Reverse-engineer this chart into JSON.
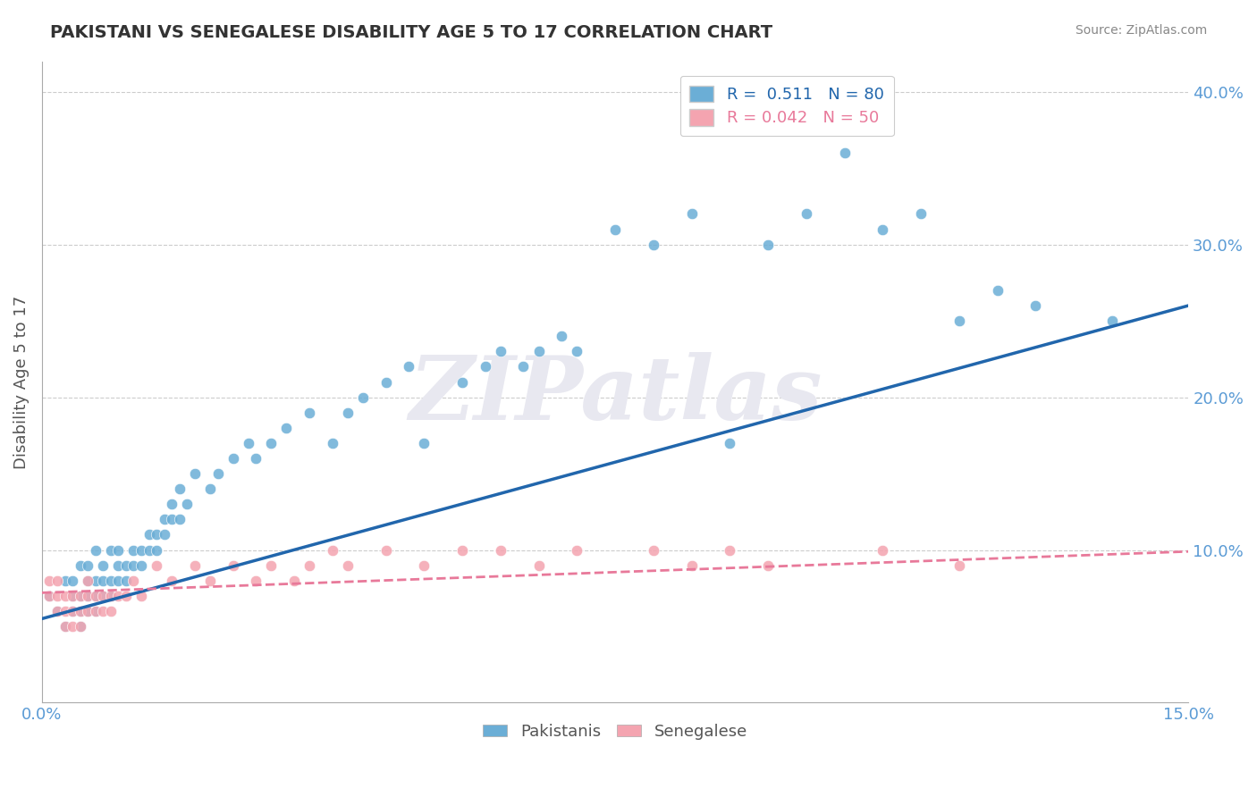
{
  "title": "PAKISTANI VS SENEGALESE DISABILITY AGE 5 TO 17 CORRELATION CHART",
  "source": "Source: ZipAtlas.com",
  "xlabel_bottom": [
    "0.0%",
    "15.0%"
  ],
  "ylabel": "Disability Age 5 to 17",
  "xlim": [
    0.0,
    0.15
  ],
  "ylim": [
    0.0,
    0.42
  ],
  "yticks": [
    0.0,
    0.1,
    0.2,
    0.3,
    0.4
  ],
  "ytick_labels": [
    "",
    "10.0%",
    "20.0%",
    "30.0%",
    "40.0%"
  ],
  "watermark": "ZIPatlas",
  "legend_r1": "R =  0.511",
  "legend_n1": "N = 80",
  "legend_r2": "R = 0.042",
  "legend_n2": "N = 50",
  "blue_color": "#6baed6",
  "pink_color": "#f4a4b0",
  "blue_line_color": "#2166ac",
  "pink_line_color": "#e8799a",
  "title_color": "#333333",
  "axis_label_color": "#5b9bd5",
  "grid_color": "#cccccc",
  "pakistani_x": [
    0.001,
    0.002,
    0.003,
    0.003,
    0.004,
    0.004,
    0.004,
    0.005,
    0.005,
    0.005,
    0.005,
    0.006,
    0.006,
    0.006,
    0.006,
    0.007,
    0.007,
    0.007,
    0.007,
    0.008,
    0.008,
    0.008,
    0.009,
    0.009,
    0.009,
    0.01,
    0.01,
    0.01,
    0.011,
    0.011,
    0.012,
    0.012,
    0.013,
    0.013,
    0.014,
    0.014,
    0.015,
    0.015,
    0.016,
    0.016,
    0.017,
    0.017,
    0.018,
    0.018,
    0.019,
    0.02,
    0.022,
    0.023,
    0.025,
    0.027,
    0.028,
    0.03,
    0.032,
    0.035,
    0.038,
    0.04,
    0.042,
    0.045,
    0.048,
    0.05,
    0.055,
    0.058,
    0.06,
    0.063,
    0.065,
    0.068,
    0.07,
    0.075,
    0.08,
    0.085,
    0.09,
    0.095,
    0.1,
    0.105,
    0.11,
    0.115,
    0.12,
    0.125,
    0.13,
    0.14
  ],
  "pakistani_y": [
    0.07,
    0.06,
    0.08,
    0.05,
    0.06,
    0.07,
    0.08,
    0.05,
    0.06,
    0.07,
    0.09,
    0.06,
    0.07,
    0.08,
    0.09,
    0.06,
    0.07,
    0.08,
    0.1,
    0.07,
    0.08,
    0.09,
    0.07,
    0.08,
    0.1,
    0.08,
    0.09,
    0.1,
    0.08,
    0.09,
    0.09,
    0.1,
    0.09,
    0.1,
    0.1,
    0.11,
    0.1,
    0.11,
    0.11,
    0.12,
    0.12,
    0.13,
    0.12,
    0.14,
    0.13,
    0.15,
    0.14,
    0.15,
    0.16,
    0.17,
    0.16,
    0.17,
    0.18,
    0.19,
    0.17,
    0.19,
    0.2,
    0.21,
    0.22,
    0.17,
    0.21,
    0.22,
    0.23,
    0.22,
    0.23,
    0.24,
    0.23,
    0.31,
    0.3,
    0.32,
    0.17,
    0.3,
    0.32,
    0.36,
    0.31,
    0.32,
    0.25,
    0.27,
    0.26,
    0.25
  ],
  "senegalese_x": [
    0.001,
    0.001,
    0.002,
    0.002,
    0.002,
    0.003,
    0.003,
    0.003,
    0.004,
    0.004,
    0.004,
    0.005,
    0.005,
    0.005,
    0.006,
    0.006,
    0.006,
    0.007,
    0.007,
    0.008,
    0.008,
    0.009,
    0.009,
    0.01,
    0.011,
    0.012,
    0.013,
    0.015,
    0.017,
    0.02,
    0.022,
    0.025,
    0.028,
    0.03,
    0.033,
    0.035,
    0.038,
    0.04,
    0.045,
    0.05,
    0.055,
    0.06,
    0.065,
    0.07,
    0.08,
    0.085,
    0.09,
    0.095,
    0.11,
    0.12
  ],
  "senegalese_y": [
    0.07,
    0.08,
    0.06,
    0.07,
    0.08,
    0.05,
    0.06,
    0.07,
    0.05,
    0.06,
    0.07,
    0.05,
    0.06,
    0.07,
    0.06,
    0.07,
    0.08,
    0.06,
    0.07,
    0.06,
    0.07,
    0.06,
    0.07,
    0.07,
    0.07,
    0.08,
    0.07,
    0.09,
    0.08,
    0.09,
    0.08,
    0.09,
    0.08,
    0.09,
    0.08,
    0.09,
    0.1,
    0.09,
    0.1,
    0.09,
    0.1,
    0.1,
    0.09,
    0.1,
    0.1,
    0.09,
    0.1,
    0.09,
    0.1,
    0.09
  ],
  "blue_trend_x": [
    0.0,
    0.15
  ],
  "blue_trend_y": [
    0.055,
    0.26
  ],
  "pink_trend_x": [
    0.0,
    0.15
  ],
  "pink_trend_y": [
    0.072,
    0.099
  ],
  "background_color": "#ffffff",
  "watermark_color": "#e8e8f0",
  "figsize": [
    14.06,
    8.92
  ],
  "dpi": 100
}
